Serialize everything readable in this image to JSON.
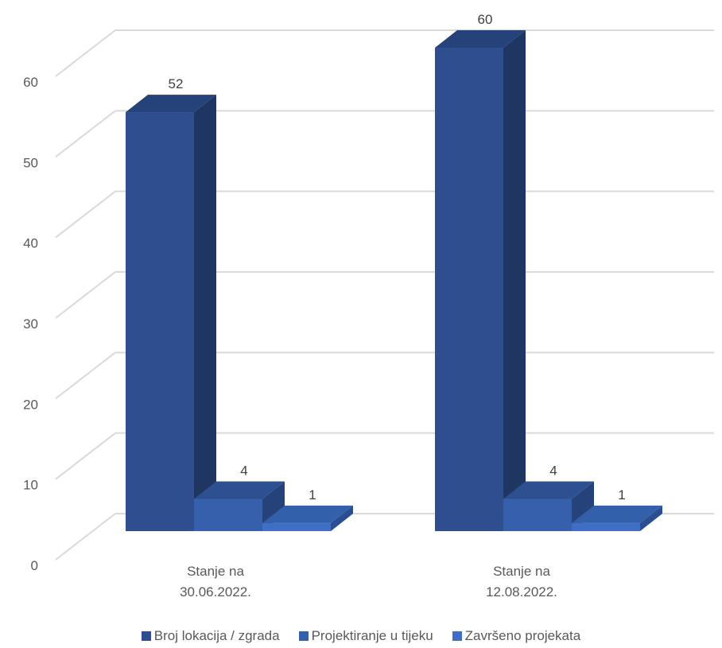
{
  "chart_data": {
    "type": "bar",
    "style": "3d-column",
    "categories": [
      [
        "Stanje na",
        "30.06.2022."
      ],
      [
        "Stanje na",
        "12.08.2022."
      ]
    ],
    "series": [
      {
        "name": "Broj lokacija / zgrada",
        "values": [
          52,
          60
        ],
        "color": "#2F4E8F"
      },
      {
        "name": "Projektiranje u tijeku",
        "values": [
          4,
          4
        ],
        "color": "#3660AB"
      },
      {
        "name": "Završeno projekata",
        "values": [
          1,
          1
        ],
        "color": "#3E6FC4"
      }
    ],
    "ylim": [
      0,
      60
    ],
    "yticks": [
      0,
      10,
      20,
      30,
      40,
      50,
      60
    ],
    "grid": true,
    "legend": "bottom",
    "data_labels": true
  }
}
